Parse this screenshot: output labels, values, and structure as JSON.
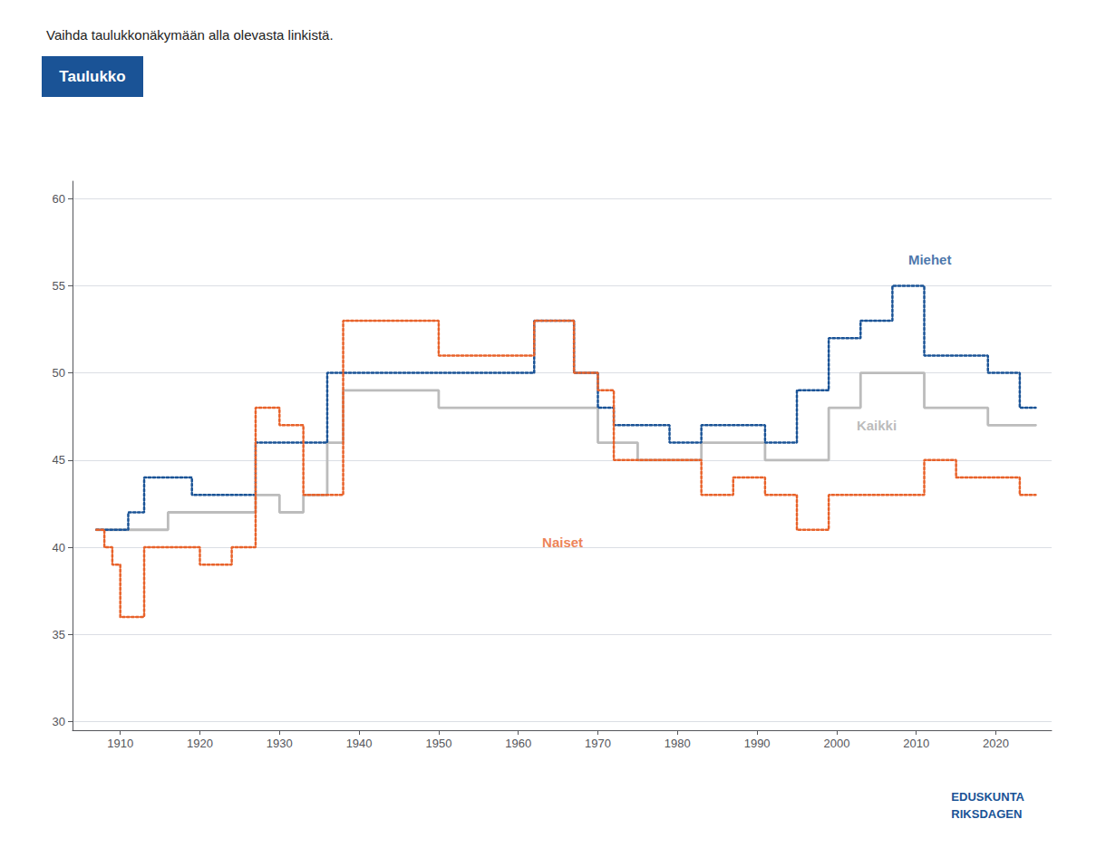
{
  "chart_data": {
    "type": "step",
    "title": "Vaihda taulukkonäkymään alla olevasta linkistä.",
    "button_text": "Taulukko",
    "button_color": "#1a5396",
    "button_text_color": "#ffffff",
    "logo_text": "EDUSKUNTA\nRIKSDAGEN",
    "logo_color": "#1a5396",
    "xlim": [
      1904,
      2027
    ],
    "xticks": [
      1910,
      1920,
      1930,
      1940,
      1950,
      1960,
      1970,
      1980,
      1990,
      2000,
      2010,
      2020
    ],
    "ylim": [
      29.5,
      61
    ],
    "yticks": [
      30,
      35,
      40,
      45,
      50,
      55,
      60
    ],
    "grid": true,
    "series": [
      {
        "color": "#1a5396",
        "line_style": "dotted",
        "x": [
          1907,
          1908,
          1909,
          1910,
          1911,
          1913,
          1916,
          1917,
          1919,
          1920,
          1921,
          1922,
          1924,
          1927,
          1929,
          1930,
          1932,
          1933,
          1936,
          1938,
          1939,
          1945,
          1946,
          1948,
          1950,
          1951,
          1954,
          1956,
          1958,
          1962,
          1963,
          1966,
          1967,
          1970,
          1972,
          1975,
          1979,
          1983,
          1987,
          1991,
          1995,
          1999,
          2003,
          2007,
          2011,
          2015,
          2019,
          2023,
          2025
        ],
        "values": [
          41,
          41,
          41,
          41,
          42,
          44,
          44,
          44,
          43,
          43,
          43,
          43,
          43,
          46,
          46,
          46,
          46,
          46,
          50,
          50,
          50,
          50,
          50,
          50,
          50,
          50,
          50,
          50,
          50,
          53,
          53,
          53,
          50,
          48,
          47,
          47,
          46,
          47,
          47,
          46,
          49,
          52,
          53,
          55,
          51,
          51,
          50,
          48,
          48
        ]
      },
      {
        "color": "#e8622a",
        "line_style": "dotted",
        "x": [
          1907,
          1908,
          1909,
          1910,
          1913,
          1916,
          1917,
          1919,
          1920,
          1921,
          1922,
          1924,
          1927,
          1929,
          1930,
          1932,
          1933,
          1936,
          1938,
          1939,
          1945,
          1946,
          1948,
          1950,
          1951,
          1954,
          1956,
          1958,
          1962,
          1963,
          1966,
          1967,
          1970,
          1972,
          1975,
          1979,
          1983,
          1987,
          1991,
          1995,
          1999,
          2003,
          2007,
          2011,
          2015,
          2019,
          2023,
          2025
        ],
        "values": [
          41,
          40,
          39,
          36,
          40,
          40,
          40,
          40,
          39,
          39,
          39,
          40,
          48,
          48,
          47,
          47,
          43,
          43,
          53,
          53,
          53,
          53,
          53,
          51,
          51,
          51,
          51,
          51,
          53,
          53,
          53,
          50,
          49,
          45,
          45,
          45,
          43,
          44,
          43,
          41,
          43,
          43,
          43,
          45,
          44,
          44,
          43,
          43
        ]
      },
      {
        "color": "#bcbcbc",
        "line_style": "solid",
        "x": [
          1907,
          1908,
          1909,
          1910,
          1913,
          1916,
          1917,
          1919,
          1920,
          1921,
          1922,
          1924,
          1927,
          1929,
          1930,
          1932,
          1933,
          1936,
          1938,
          1939,
          1945,
          1946,
          1948,
          1950,
          1951,
          1954,
          1956,
          1958,
          1962,
          1963,
          1966,
          1967,
          1970,
          1972,
          1975,
          1979,
          1983,
          1987,
          1991,
          1995,
          1999,
          2003,
          2007,
          2011,
          2015,
          2019,
          2023,
          2025
        ],
        "values": [
          41,
          41,
          41,
          41,
          41,
          42,
          42,
          42,
          42,
          42,
          42,
          42,
          43,
          43,
          42,
          42,
          43,
          46,
          49,
          49,
          49,
          49,
          49,
          48,
          48,
          48,
          48,
          48,
          48,
          48,
          48,
          48,
          46,
          46,
          45,
          45,
          46,
          46,
          45,
          45,
          48,
          50,
          50,
          48,
          48,
          47,
          47,
          47
        ]
      }
    ],
    "annotations": [
      {
        "text": "Miehet",
        "x": 2009,
        "y": 56.5,
        "color": "#1a5396"
      },
      {
        "text": "Naiset",
        "x": 1963,
        "y": 40.3,
        "color": "#e8622a"
      },
      {
        "text": "Kaikki",
        "x": 2002.5,
        "y": 47.0,
        "color": "#aaaaaa"
      }
    ]
  }
}
